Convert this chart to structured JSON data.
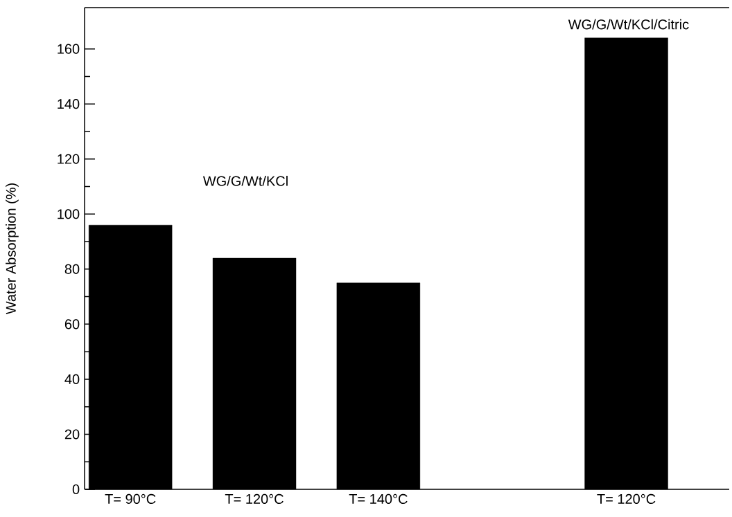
{
  "chart_data": {
    "type": "bar",
    "ylabel": "Water Absorption  (%)",
    "categories": [
      "T= 90°C",
      "T= 120°C",
      "T= 140°C",
      null,
      "T= 120°C"
    ],
    "values": [
      96,
      84,
      75,
      null,
      164
    ],
    "color": "#000000",
    "ylim": [
      0,
      175
    ],
    "yticks": [
      0,
      20,
      40,
      60,
      80,
      100,
      120,
      140,
      160
    ],
    "annotations": [
      "WG/G/Wt/KCl",
      "WG/G/Wt/KCl/Citric"
    ]
  }
}
